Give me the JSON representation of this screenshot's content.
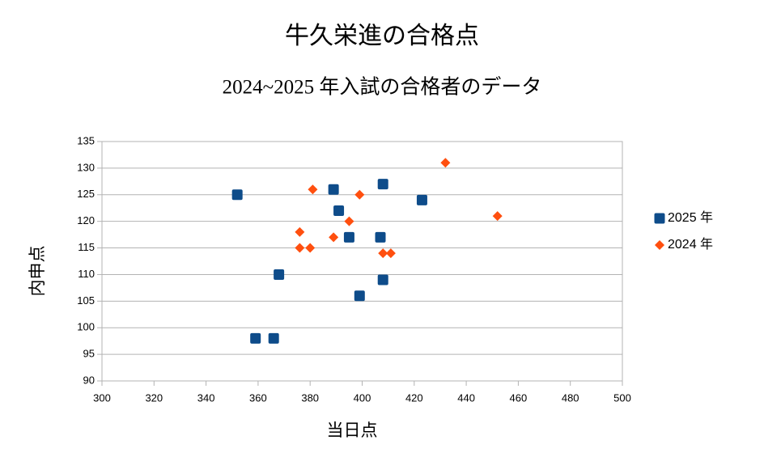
{
  "chart_data": {
    "type": "scatter",
    "title": "牛久栄進の合格点",
    "subtitle": "2024~2025 年入試の合格者のデータ",
    "x_label": "当日点",
    "y_label": "内申点",
    "xlim": [
      300,
      500
    ],
    "xticks": [
      300,
      320,
      340,
      360,
      380,
      400,
      420,
      440,
      460,
      480,
      500
    ],
    "ylim": [
      90,
      135
    ],
    "yticks": [
      90,
      95,
      100,
      105,
      110,
      115,
      120,
      125,
      130,
      135
    ],
    "grid": true,
    "legend": "right",
    "series": [
      {
        "name": "2025 年",
        "color": "#0e4c8a",
        "marker": "square",
        "x": [
          352,
          359,
          366,
          368,
          389,
          391,
          395,
          399,
          407,
          408,
          408,
          423
        ],
        "values": [
          125,
          98,
          98,
          110,
          126,
          122,
          117,
          106,
          117,
          127,
          109,
          124
        ]
      },
      {
        "name": "2024 年",
        "color": "#ff4f0f",
        "marker": "diamond",
        "x": [
          376,
          376,
          380,
          381,
          389,
          395,
          399,
          408,
          411,
          432,
          452
        ],
        "values": [
          118,
          115,
          115,
          126,
          117,
          120,
          125,
          114,
          114,
          131,
          121
        ]
      }
    ]
  }
}
